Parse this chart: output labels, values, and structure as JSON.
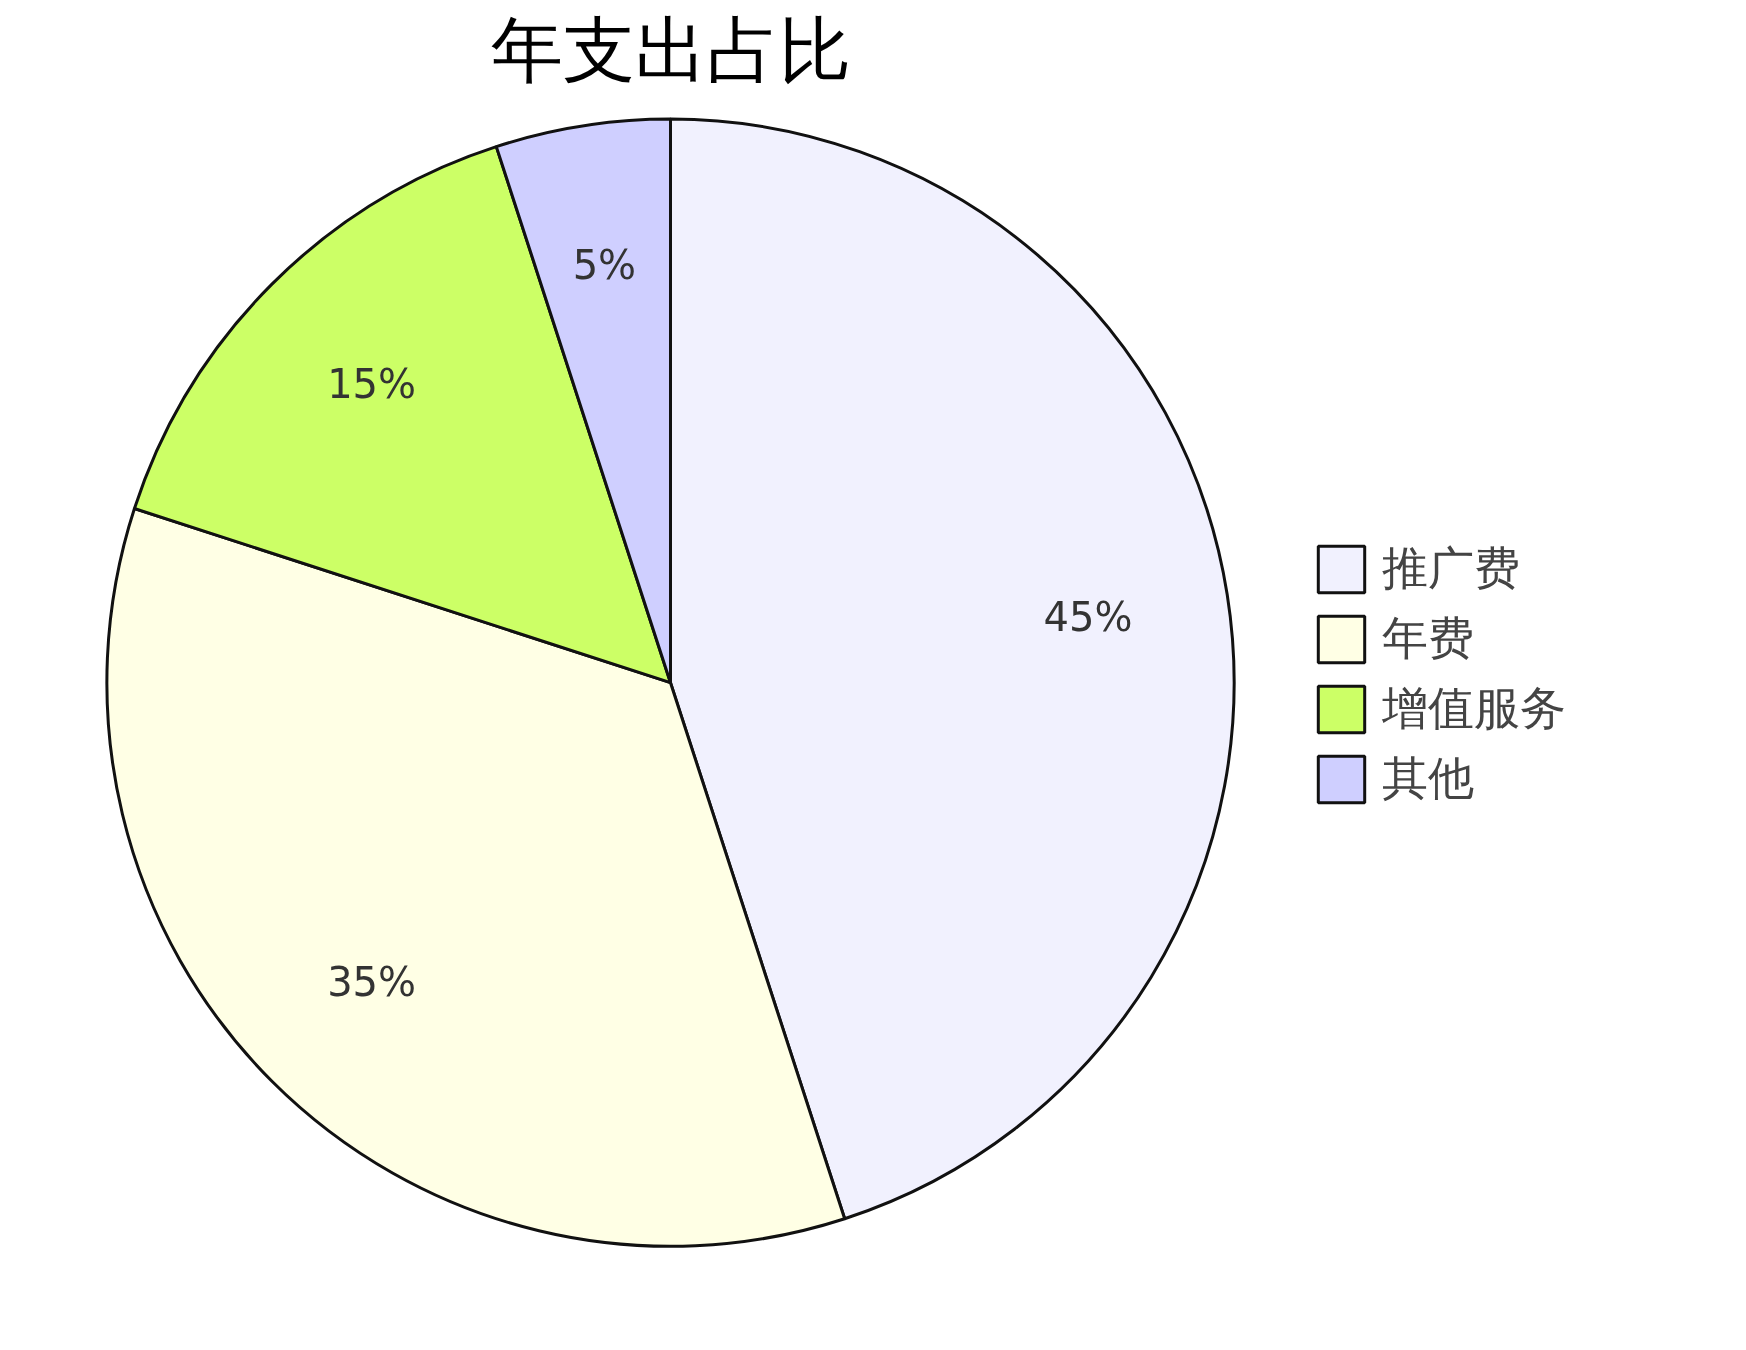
{
  "chart_data": {
    "type": "pie",
    "title": "年支出占比",
    "categories": [
      "推广费",
      "年费",
      "增值服务",
      "其他"
    ],
    "values": [
      45,
      35,
      15,
      5
    ],
    "value_labels": [
      "45%",
      "35%",
      "15%",
      "5%"
    ],
    "colors": [
      "#f1f1fe",
      "#ffffe5",
      "#ccff66",
      "#cfcfff"
    ],
    "legend": "right"
  }
}
